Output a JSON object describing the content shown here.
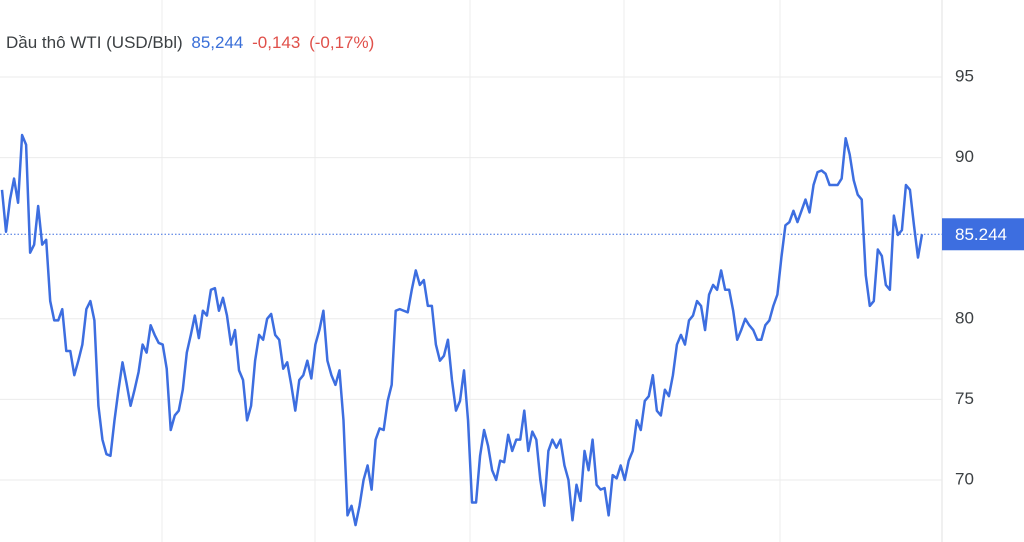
{
  "chart_data": {
    "type": "line",
    "title": "Dầu thô WTI (USD/Bbl)",
    "price": {
      "value": 85.244,
      "label": "85,244"
    },
    "change": {
      "value": -0.143,
      "label": "-0,143"
    },
    "change_percent": {
      "value": -0.17,
      "label": "(-0,17%)"
    },
    "color": "#3d6ee0",
    "grid": true,
    "axis_side": "right",
    "ylim": [
      66.15,
      99.78
    ],
    "yticks": [
      70,
      75,
      80,
      90,
      95
    ],
    "values": [
      88.0,
      85.4,
      87.4,
      88.7,
      87.2,
      91.4,
      90.8,
      84.1,
      84.6,
      87.0,
      84.6,
      84.9,
      81.1,
      79.9,
      79.9,
      80.6,
      78.0,
      78.0,
      76.5,
      77.4,
      78.4,
      80.6,
      81.1,
      79.9,
      74.6,
      72.5,
      71.6,
      71.5,
      73.7,
      75.6,
      77.3,
      76.0,
      74.6,
      75.6,
      76.7,
      78.4,
      77.9,
      79.6,
      79.0,
      78.5,
      78.4,
      76.9,
      73.1,
      74.0,
      74.3,
      75.6,
      77.9,
      79.0,
      80.2,
      78.8,
      80.5,
      80.2,
      81.8,
      81.9,
      80.5,
      81.3,
      80.2,
      78.4,
      79.3,
      76.8,
      76.2,
      73.7,
      74.6,
      77.4,
      79.0,
      78.7,
      80.0,
      80.3,
      79.0,
      78.7,
      76.9,
      77.3,
      75.9,
      74.3,
      76.2,
      76.5,
      77.4,
      76.3,
      78.4,
      79.3,
      80.5,
      77.4,
      76.5,
      75.9,
      76.8,
      73.7,
      67.8,
      68.4,
      67.2,
      68.4,
      70.0,
      70.9,
      69.4,
      72.5,
      73.2,
      73.1,
      74.9,
      75.9,
      80.5,
      80.6,
      80.5,
      80.4,
      81.8,
      83.0,
      82.1,
      82.4,
      80.8,
      80.8,
      78.4,
      77.4,
      77.7,
      78.7,
      76.2,
      74.3,
      74.9,
      76.8,
      73.7,
      68.6,
      68.6,
      71.5,
      73.1,
      72.1,
      70.6,
      70.0,
      71.2,
      71.1,
      72.8,
      71.8,
      72.5,
      72.5,
      74.3,
      71.8,
      73.0,
      72.5,
      70.0,
      68.4,
      71.8,
      72.5,
      72.0,
      72.5,
      70.9,
      70.0,
      67.5,
      69.7,
      68.7,
      71.8,
      70.6,
      72.5,
      69.7,
      69.4,
      69.5,
      67.8,
      70.3,
      70.1,
      70.9,
      70.0,
      71.2,
      71.8,
      73.7,
      73.1,
      74.9,
      75.2,
      76.5,
      74.3,
      74.0,
      75.6,
      75.2,
      76.5,
      78.4,
      79.0,
      78.4,
      79.9,
      80.2,
      81.1,
      80.8,
      79.3,
      81.5,
      82.1,
      81.8,
      83.0,
      81.8,
      81.8,
      80.5,
      78.7,
      79.3,
      80.0,
      79.6,
      79.3,
      78.7,
      78.7,
      79.6,
      79.9,
      80.8,
      81.5,
      83.8,
      85.8,
      86.0,
      86.7,
      86.0,
      86.7,
      87.4,
      86.6,
      88.3,
      89.1,
      89.2,
      89.0,
      88.3,
      88.3,
      88.3,
      88.7,
      91.2,
      90.2,
      88.6,
      87.7,
      87.4,
      82.7,
      80.8,
      81.1,
      84.3,
      83.9,
      82.1,
      81.8,
      86.4,
      85.2,
      85.5,
      88.3,
      88.0,
      85.8,
      83.8,
      85.244
    ]
  }
}
